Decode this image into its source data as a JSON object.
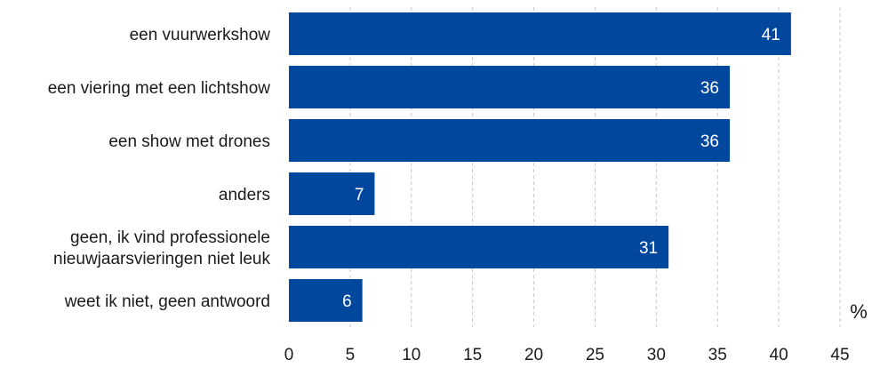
{
  "chart_data": {
    "type": "bar",
    "orientation": "horizontal",
    "categories": [
      [
        "een vuurwerkshow"
      ],
      [
        "een viering met een lichtshow"
      ],
      [
        "een show met drones"
      ],
      [
        "anders"
      ],
      [
        "geen, ik vind professionele",
        "nieuwjaarsvieringen niet leuk"
      ],
      [
        "weet ik niet, geen antwoord"
      ]
    ],
    "values": [
      41,
      36,
      36,
      7,
      31,
      6
    ],
    "value_labels": [
      "41",
      "36",
      "36",
      "7",
      "31",
      "6"
    ],
    "x_ticks": [
      "0",
      "5",
      "10",
      "15",
      "20",
      "25",
      "30",
      "35",
      "40",
      "45"
    ],
    "xlim": [
      0,
      45
    ],
    "unit_label": "%",
    "grid": "vertical dashed",
    "colors": {
      "bar": "#00479d",
      "grid": "#c8c8c8"
    }
  }
}
